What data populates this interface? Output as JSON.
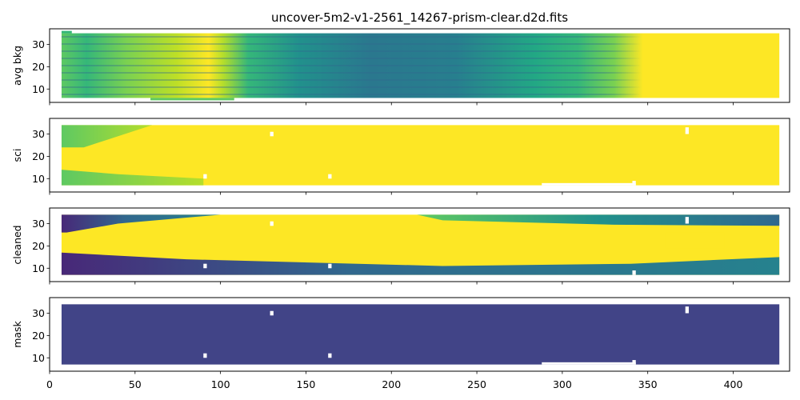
{
  "chart_data": {
    "type": "heatmap",
    "title": "uncover-5m2-v1-2561_14267-prism-clear.d2d.fits",
    "shared_x": {
      "lim": [
        0,
        433
      ],
      "ticks": [
        0,
        50,
        100,
        150,
        200,
        250,
        300,
        350,
        400
      ],
      "tick_labels": [
        "0",
        "50",
        "100",
        "150",
        "200",
        "250",
        "300",
        "350",
        "400"
      ]
    },
    "colormap": "viridis",
    "panels": [
      {
        "ylabel": "avg bkg",
        "ylim": [
          4,
          37
        ],
        "yticks": [
          10,
          20,
          30
        ],
        "ytick_labels": [
          "10",
          "20",
          "30"
        ],
        "data_x_range": [
          7,
          427
        ],
        "data_y_range": [
          6,
          35
        ]
      },
      {
        "ylabel": "sci",
        "ylim": [
          4,
          37
        ],
        "yticks": [
          10,
          20,
          30
        ],
        "ytick_labels": [
          "10",
          "20",
          "30"
        ],
        "data_x_range": [
          7,
          427
        ],
        "data_y_range": [
          7,
          34
        ]
      },
      {
        "ylabel": "cleaned",
        "ylim": [
          4,
          37
        ],
        "yticks": [
          10,
          20,
          30
        ],
        "ytick_labels": [
          "10",
          "20",
          "30"
        ],
        "data_x_range": [
          7,
          427
        ],
        "data_y_range": [
          7,
          34
        ]
      },
      {
        "ylabel": "mask",
        "ylim": [
          4,
          37
        ],
        "yticks": [
          10,
          20,
          30
        ],
        "ytick_labels": [
          "10",
          "20",
          "30"
        ],
        "data_x_range": [
          7,
          427
        ],
        "data_y_range": [
          7,
          34
        ]
      }
    ]
  },
  "colors": {
    "yellow": "#fde725",
    "mask_purple": "#414487",
    "dark": "#440154",
    "teal": "#21918c",
    "mid_blue": "#31688e",
    "green": "#5ec962"
  }
}
